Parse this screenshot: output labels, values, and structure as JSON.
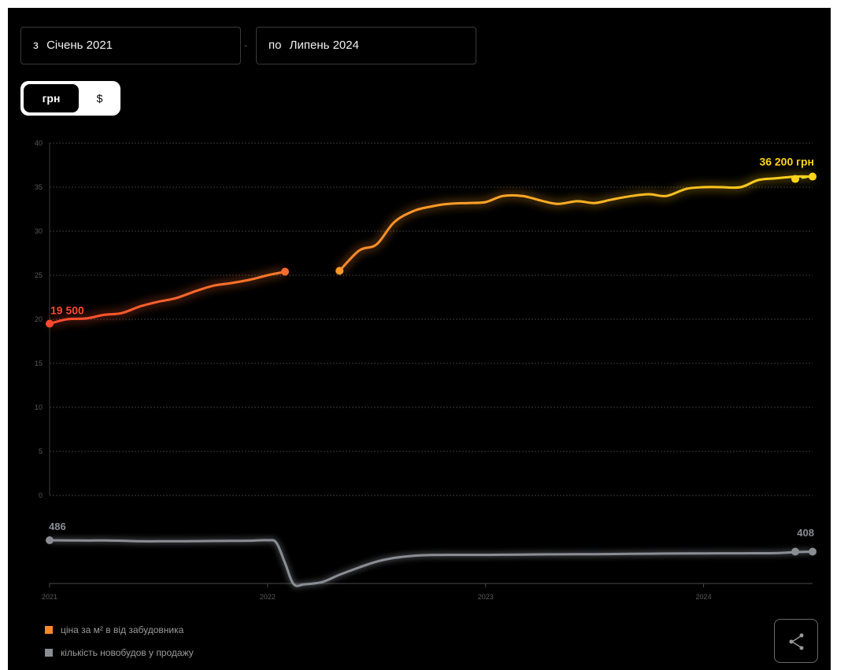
{
  "filters": {
    "from_prefix": "з",
    "from_value": "Січень 2021",
    "to_prefix": "по",
    "to_value": "Липень 2024",
    "separator": "-"
  },
  "currency_toggle": {
    "uah_label": "грн",
    "usd_label": "$",
    "selected": "грн"
  },
  "colors": {
    "background": "#000000",
    "price_start": "#ff4a2e",
    "price_mid": "#ff9a2a",
    "price_end": "#ffd51a",
    "count_line": "#8a8d94",
    "grid": "#3a3a3a"
  },
  "chart_data": [
    {
      "type": "line",
      "y_ticks": [
        "40",
        "35",
        "30",
        "25",
        "20",
        "15",
        "10",
        "5",
        "0"
      ],
      "ylim": [
        0,
        40
      ],
      "grid": true,
      "start_label": "19 500",
      "end_label": "36 200 грн",
      "series": [
        {
          "x": [
            2021.0,
            2021.08,
            2021.17,
            2021.25,
            2021.33,
            2021.42,
            2021.5,
            2021.58,
            2021.67,
            2021.75,
            2021.83,
            2021.92,
            2022.0,
            2022.08
          ],
          "values": [
            19.5,
            20.0,
            20.1,
            20.5,
            20.7,
            21.5,
            22.0,
            22.4,
            23.2,
            23.8,
            24.1,
            24.5,
            25.0,
            25.4
          ]
        },
        {
          "x": [
            2022.33,
            2022.42,
            2022.5,
            2022.58,
            2022.67,
            2022.75,
            2022.83,
            2022.92,
            2023.0,
            2023.08,
            2023.17,
            2023.25,
            2023.33,
            2023.42,
            2023.5,
            2023.58,
            2023.67,
            2023.75,
            2023.83,
            2023.92,
            2024.0,
            2024.08,
            2024.17,
            2024.25,
            2024.33,
            2024.42,
            2024.5
          ],
          "values": [
            25.5,
            27.8,
            28.5,
            31.0,
            32.3,
            32.8,
            33.1,
            33.2,
            33.3,
            34.0,
            34.0,
            33.5,
            33.1,
            33.4,
            33.2,
            33.6,
            34.0,
            34.2,
            34.0,
            34.8,
            35.0,
            35.0,
            35.0,
            35.8,
            36.0,
            36.2,
            36.2
          ]
        }
      ]
    },
    {
      "type": "line",
      "x_ticks": [
        "2021",
        "2022",
        "2023",
        "2024"
      ],
      "start_label": "486",
      "end_label": "408",
      "series": [
        {
          "x": [
            2021.0,
            2021.08,
            2021.17,
            2021.25,
            2021.33,
            2021.42,
            2021.5,
            2021.58,
            2021.67,
            2021.75,
            2021.83,
            2021.92,
            2022.0,
            2022.04,
            2022.08,
            2022.12,
            2022.17,
            2022.25,
            2022.33,
            2022.42,
            2022.5,
            2022.58,
            2022.67,
            2022.75,
            2022.83,
            2022.92,
            2023.0,
            2023.17,
            2023.33,
            2023.5,
            2023.67,
            2023.83,
            2024.0,
            2024.17,
            2024.33,
            2024.42,
            2024.5
          ],
          "values": [
            486,
            485,
            484,
            485,
            483,
            479,
            479,
            479,
            480,
            481,
            482,
            483,
            486,
            470,
            330,
            185,
            185,
            200,
            250,
            300,
            340,
            365,
            380,
            385,
            386,
            386,
            386,
            388,
            390,
            391,
            393,
            395,
            396,
            397,
            398,
            405,
            408
          ]
        }
      ]
    }
  ],
  "legend": [
    {
      "label": "ціна за м² в від забудовника",
      "color": "#ff8a24"
    },
    {
      "label": "кількість новобудов у продажу",
      "color": "#8a8d94"
    }
  ],
  "share": {
    "icon": "share-icon"
  }
}
